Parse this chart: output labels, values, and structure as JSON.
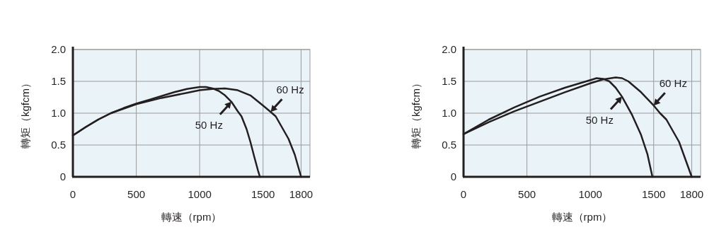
{
  "chart_data": [
    {
      "type": "line",
      "xlabel": "轉速（rpm）",
      "ylabel": "轉矩（kgfcm）",
      "xlim": [
        0,
        1870
      ],
      "ylim": [
        0,
        2.0
      ],
      "xticks": [
        0,
        500,
        1000,
        1500,
        1800
      ],
      "yticks": [
        0,
        {
          "value": 0.5,
          "label": "0.5"
        },
        {
          "value": 1,
          "label": "1.0"
        },
        {
          "value": 1.5,
          "label": "1.5"
        },
        {
          "value": 2,
          "label": "2.0"
        }
      ],
      "grid": true,
      "series": [
        {
          "name": "50 Hz",
          "color": "#231f20",
          "x": [
            0,
            100,
            200,
            300,
            400,
            500,
            600,
            700,
            800,
            900,
            1000,
            1050,
            1100,
            1150,
            1200,
            1250,
            1300,
            1330,
            1370,
            1400,
            1430,
            1460,
            1475
          ],
          "values": [
            0.65,
            0.78,
            0.9,
            1.0,
            1.08,
            1.15,
            1.21,
            1.27,
            1.33,
            1.38,
            1.41,
            1.41,
            1.39,
            1.35,
            1.28,
            1.18,
            1.03,
            0.95,
            0.75,
            0.55,
            0.32,
            0.1,
            0
          ]
        },
        {
          "name": "60 Hz",
          "color": "#231f20",
          "x": [
            0,
            100,
            200,
            300,
            500,
            700,
            900,
            1000,
            1100,
            1200,
            1300,
            1400,
            1500,
            1560,
            1600,
            1700,
            1750,
            1800
          ],
          "values": [
            0.65,
            0.78,
            0.9,
            1.0,
            1.14,
            1.24,
            1.32,
            1.36,
            1.38,
            1.39,
            1.36,
            1.28,
            1.12,
            1.02,
            0.95,
            0.6,
            0.35,
            0
          ]
        }
      ]
    },
    {
      "type": "line",
      "xlabel": "轉速（rpm）",
      "ylabel": "轉矩（kgfcm）",
      "xlim": [
        0,
        1870
      ],
      "ylim": [
        0,
        2.0
      ],
      "xticks": [
        0,
        500,
        1000,
        1500,
        1800
      ],
      "yticks": [
        0,
        {
          "value": 0.5,
          "label": "0.5"
        },
        {
          "value": 1,
          "label": "1.0"
        },
        {
          "value": 1.5,
          "label": "1.5"
        },
        {
          "value": 2,
          "label": "2.0"
        }
      ],
      "grid": true,
      "series": [
        {
          "name": "50 Hz",
          "color": "#231f20",
          "x": [
            0,
            200,
            400,
            600,
            800,
            1000,
            1050,
            1100,
            1150,
            1200,
            1250,
            1300,
            1330,
            1400,
            1450,
            1490
          ],
          "values": [
            0.67,
            0.9,
            1.09,
            1.26,
            1.4,
            1.52,
            1.55,
            1.54,
            1.5,
            1.4,
            1.26,
            1.08,
            0.97,
            0.66,
            0.36,
            0
          ]
        },
        {
          "name": "60 Hz",
          "color": "#231f20",
          "x": [
            0,
            200,
            400,
            600,
            800,
            1000,
            1100,
            1200,
            1250,
            1300,
            1400,
            1500,
            1550,
            1600,
            1700,
            1800
          ],
          "values": [
            0.67,
            0.86,
            1.03,
            1.18,
            1.33,
            1.47,
            1.53,
            1.56,
            1.55,
            1.5,
            1.33,
            1.12,
            1.0,
            0.9,
            0.55,
            0
          ]
        }
      ]
    }
  ]
}
